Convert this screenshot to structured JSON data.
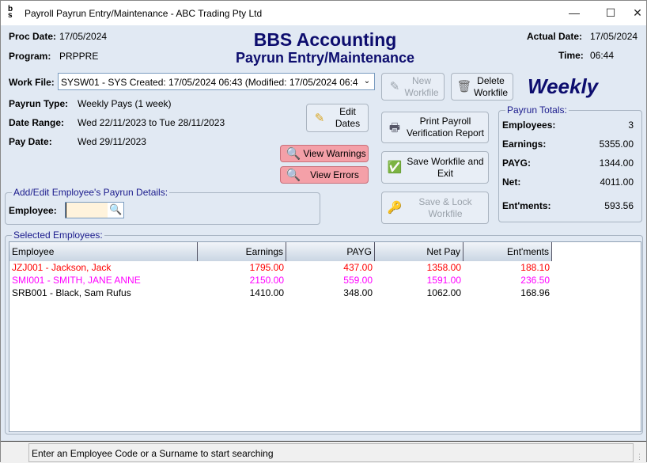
{
  "window": {
    "title": "Payroll Payrun Entry/Maintenance - ABC Trading Pty Ltd",
    "app_icon": "bbs-logo-icon"
  },
  "header": {
    "proc_date_label": "Proc Date:",
    "proc_date": "17/05/2024",
    "program_label": "Program:",
    "program": "PRPPRE",
    "title": "BBS Accounting",
    "subtitle": "Payrun Entry/Maintenance",
    "actual_date_label": "Actual Date:",
    "actual_date": "17/05/2024",
    "time_label": "Time:",
    "time": "06:44"
  },
  "workfile": {
    "label": "Work File:",
    "value": "SYSW01 - SYS Created: 17/05/2024 06:43 (Modified: 17/05/2024 06:4"
  },
  "info": {
    "payrun_type_label": "Payrun Type:",
    "payrun_type": "Weekly Pays (1 week)",
    "date_range_label": "Date Range:",
    "date_range": "Wed 22/11/2023 to Tue 28/11/2023",
    "pay_date_label": "Pay Date:",
    "pay_date": "Wed 29/11/2023"
  },
  "buttons": {
    "edit_dates": "Edit Dates",
    "view_warnings": "View Warnings",
    "view_errors": "View Errors",
    "new_workfile": "New Workfile",
    "delete_workfile": "Delete Workfile",
    "print_report": "Print Payroll Verification Report",
    "save_exit": "Save Workfile and Exit",
    "save_lock": "Save & Lock Workfile"
  },
  "frequency": "Weekly",
  "employee_group": {
    "legend": "Add/Edit Employee's Payrun Details:",
    "employee_label": "Employee:",
    "employee_value": ""
  },
  "totals": {
    "legend": "Payrun Totals:",
    "items": [
      {
        "label": "Employees:",
        "value": "3"
      },
      {
        "label": "Earnings:",
        "value": "5355.00"
      },
      {
        "label": "PAYG:",
        "value": "1344.00"
      },
      {
        "label": "Net:",
        "value": "4011.00"
      },
      {
        "label": "Ent'ments:",
        "value": "593.56"
      }
    ]
  },
  "selected": {
    "legend": "Selected Employees:",
    "columns": [
      "Employee",
      "Earnings",
      "PAYG",
      "Net Pay",
      "Ent'ments"
    ],
    "rows": [
      {
        "employee": "JZJ001 - Jackson, Jack",
        "earnings": "1795.00",
        "payg": "437.00",
        "net": "1358.00",
        "entments": "188.10",
        "color": "#ff0000"
      },
      {
        "employee": "SMI001 - SMITH, JANE ANNE",
        "earnings": "2150.00",
        "payg": "559.00",
        "net": "1591.00",
        "entments": "236.50",
        "color": "#ff00ff"
      },
      {
        "employee": "SRB001 - Black, Sam Rufus",
        "earnings": "1410.00",
        "payg": "348.00",
        "net": "1062.00",
        "entments": "168.96",
        "color": "#000000"
      }
    ]
  },
  "status": "Enter an Employee Code or a Surname to start searching"
}
